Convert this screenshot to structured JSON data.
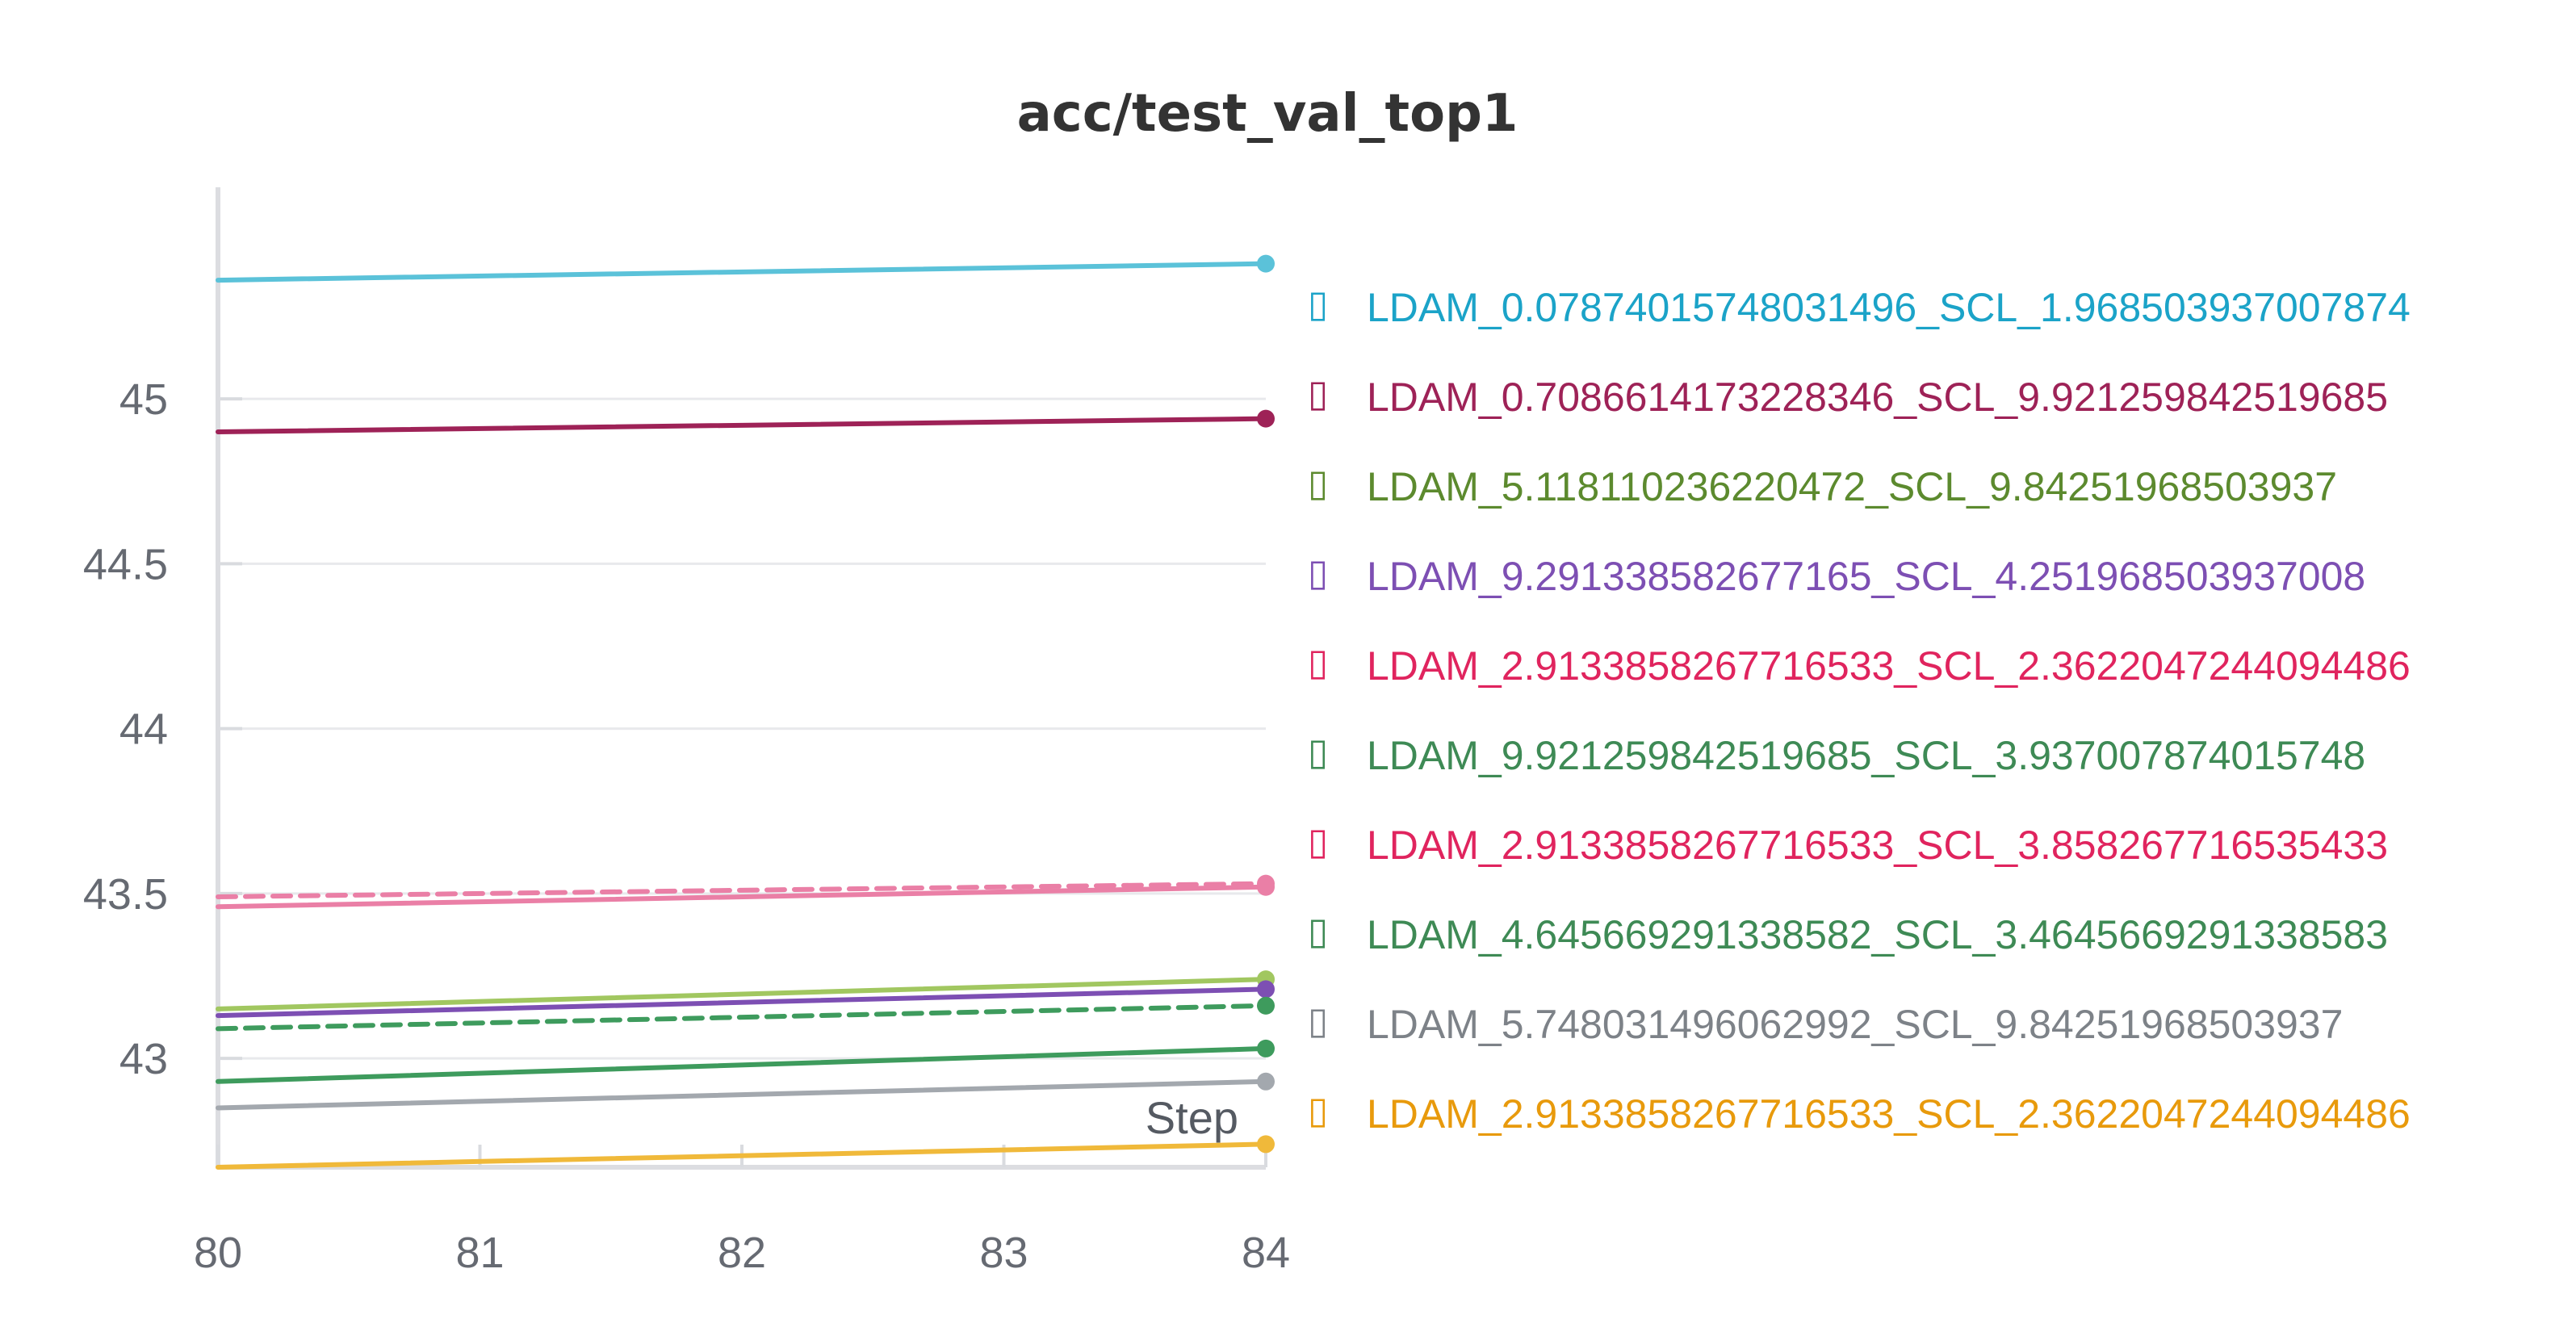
{
  "chart_data": {
    "type": "line",
    "title": "acc/test_val_top1",
    "xlabel": "Step",
    "ylabel": "",
    "x": [
      80,
      84
    ],
    "xticks": [
      "80",
      "81",
      "82",
      "83",
      "84"
    ],
    "yticks": [
      "43",
      "43.5",
      "44",
      "44.5",
      "45"
    ],
    "xlim": [
      80,
      84
    ],
    "ylim": [
      42.67,
      45.72
    ],
    "grid": "horizontal",
    "legend_position": "right",
    "legend_marker": "▯",
    "series": [
      {
        "name": "LDAM_0.07874015748031496_SCL_1.968503937007874",
        "values": [
          45.36,
          45.41
        ],
        "color": "#5bc2d9",
        "text_color": "#1ba3c8",
        "dashed": false
      },
      {
        "name": "LDAM_0.7086614173228346_SCL_9.921259842519685",
        "values": [
          44.9,
          44.94
        ],
        "color": "#9e2257",
        "text_color": "#9e2257",
        "dashed": false
      },
      {
        "name": "LDAM_5.118110236220472_SCL_9.84251968503937",
        "values": [
          43.15,
          43.24
        ],
        "color": "#a1c760",
        "text_color": "#5c8a2e",
        "dashed": false
      },
      {
        "name": "LDAM_9.291338582677165_SCL_4.251968503937008",
        "values": [
          43.13,
          43.21
        ],
        "color": "#7d4fb3",
        "text_color": "#7d4fb3",
        "dashed": false
      },
      {
        "name": "LDAM_2.9133858267716533_SCL_2.3622047244094486",
        "values": [
          43.46,
          43.52
        ],
        "color": "#ea7fa6",
        "text_color": "#e0245e",
        "dashed": false
      },
      {
        "name": "LDAM_9.921259842519685_SCL_3.937007874015748",
        "values": [
          42.93,
          43.03
        ],
        "color": "#3e9b5d",
        "text_color": "#3e8a55",
        "dashed": false
      },
      {
        "name": "LDAM_2.9133858267716533_SCL_3.858267716535433",
        "values": [
          43.49,
          43.53
        ],
        "color": "#ea7fa6",
        "text_color": "#e0245e",
        "dashed": true
      },
      {
        "name": "LDAM_4.645669291338582_SCL_3.4645669291338583",
        "values": [
          43.09,
          43.16
        ],
        "color": "#3e9b5d",
        "text_color": "#3e8a55",
        "dashed": true
      },
      {
        "name": "LDAM_5.748031496062992_SCL_9.84251968503937",
        "values": [
          42.85,
          42.93
        ],
        "color": "#a3a8ae",
        "text_color": "#7d8288",
        "dashed": false
      },
      {
        "name": "LDAM_2.9133858267716533_SCL_2.3622047244094486",
        "values": [
          42.67,
          42.74
        ],
        "color": "#f0b93a",
        "text_color": "#e89a0c",
        "dashed": false
      }
    ]
  }
}
